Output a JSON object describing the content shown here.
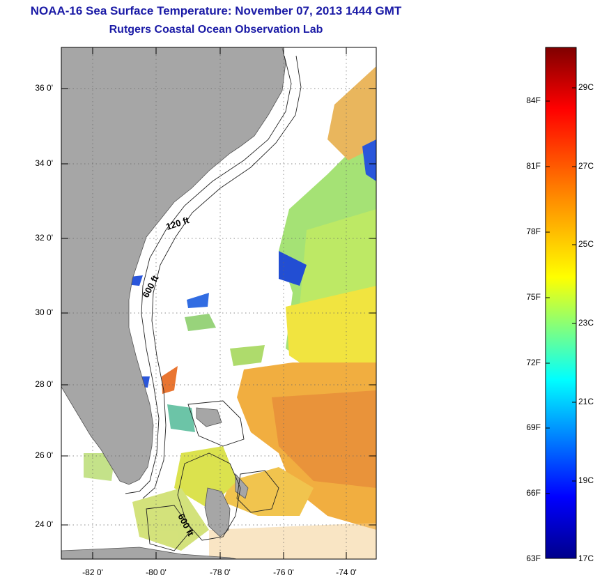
{
  "title": {
    "line1": "NOAA-16 Sea Surface Temperature:  November 07, 2013 1444 GMT",
    "line2": "Rutgers Coastal Ocean Observation Lab"
  },
  "map": {
    "lat_labels": [
      "36 0'",
      "34 0'",
      "32 0'",
      "30 0'",
      "28 0'",
      "26 0'",
      "24 0'"
    ],
    "lon_labels": [
      "-82 0'",
      "-80 0'",
      "-78 0'",
      "-76 0'",
      "-74 0'"
    ],
    "isobath_labels": [
      "120 ft",
      "600 ft",
      "600 ft"
    ],
    "colors": {
      "land": "#a6a6a6",
      "water": "#ffffff",
      "title": "#1a1aa6"
    }
  },
  "colorbar": {
    "fahrenheit_labels": [
      "84F",
      "81F",
      "78F",
      "75F",
      "72F",
      "69F",
      "66F",
      "63F"
    ],
    "celsius_labels": [
      "29C",
      "27C",
      "25C",
      "23C",
      "21C",
      "19C",
      "17C"
    ],
    "range_c": [
      17,
      30
    ]
  }
}
